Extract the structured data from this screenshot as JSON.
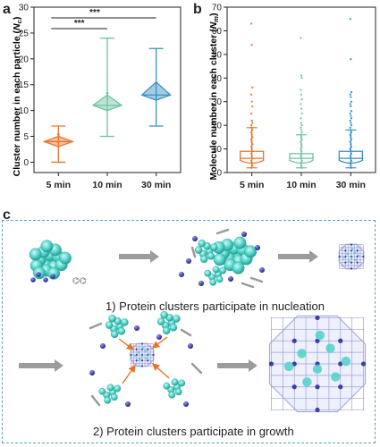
{
  "panels": {
    "a": "a",
    "b": "b",
    "c": "c"
  },
  "colors": {
    "orange": "#e8742c",
    "green": "#6cc3a0",
    "blue": "#3a8fc4",
    "cluster": "#4fd1c7",
    "atom": "#2b2fa0",
    "frame": "#9aa2d8"
  },
  "chart_data": [
    {
      "type": "violin",
      "ylabel": "Cluster number in each particle (N_c)",
      "ylabel_main": "Cluster number in each particle (",
      "ylabel_sym": "N",
      "ylabel_sub": "c",
      "ylabel_end": ")",
      "categories": [
        "5 min",
        "10 min",
        "30 min"
      ],
      "ylim": [
        -2,
        30
      ],
      "yticks": [
        0,
        5,
        10,
        15,
        20,
        25,
        30
      ],
      "series": [
        {
          "min": 0,
          "q1": 3,
          "median": 4,
          "q3": 5,
          "max": 7,
          "mean": 4,
          "color": "#e8742c"
        },
        {
          "min": 5,
          "q1": 10,
          "median": 11,
          "q3": 13,
          "max": 24,
          "mean": 12,
          "color": "#6cc3a0"
        },
        {
          "min": 7,
          "q1": 12,
          "median": 13,
          "q3": 15.5,
          "max": 22,
          "mean": 14,
          "color": "#3a8fc4"
        }
      ],
      "significance": [
        {
          "from": 0,
          "to": 1,
          "label": "***"
        },
        {
          "from": 0,
          "to": 2,
          "label": "***"
        }
      ]
    },
    {
      "type": "box-scatter",
      "ylabel": "Molecule number in each cluster (N_m)",
      "ylabel_main": "Molecule number in each cluster (",
      "ylabel_sym": "N",
      "ylabel_sub": "m",
      "ylabel_end": ")",
      "categories": [
        "5 min",
        "10 min",
        "30 min"
      ],
      "ylim": [
        0,
        70
      ],
      "yticks": [
        0,
        10,
        20,
        30,
        40,
        50,
        60,
        70
      ],
      "series": [
        {
          "min": 2,
          "q1": 4,
          "median": 6,
          "q3": 9,
          "max": 19,
          "mean": 8,
          "color": "#e8742c",
          "points": [
            63,
            54,
            36,
            33,
            30,
            28,
            25,
            22,
            21,
            20,
            19,
            18,
            17,
            16,
            15,
            14,
            13,
            12,
            11,
            10,
            9,
            8,
            7,
            6,
            5,
            4,
            3,
            2
          ]
        },
        {
          "min": 2,
          "q1": 4,
          "median": 6,
          "q3": 8,
          "max": 16,
          "mean": 7,
          "color": "#6cc3a0",
          "points": [
            57,
            41,
            40,
            35,
            33,
            31,
            29,
            27,
            25,
            23,
            21,
            20,
            19,
            18,
            17,
            16,
            15,
            14,
            13,
            12,
            11,
            10,
            9,
            8,
            7,
            6,
            5,
            4,
            3,
            2
          ]
        },
        {
          "min": 2,
          "q1": 4,
          "median": 6,
          "q3": 9,
          "max": 18,
          "mean": 7,
          "color": "#3a8fc4",
          "points": [
            65,
            48,
            34,
            33,
            32,
            30,
            29,
            28,
            26,
            25,
            24,
            23,
            22,
            21,
            20,
            19,
            18,
            17,
            16,
            15,
            14,
            13,
            12,
            11,
            10,
            9,
            8,
            7,
            6,
            5,
            4,
            3,
            2
          ]
        }
      ]
    }
  ],
  "schematic": {
    "caption1": "1) Protein clusters participate in nucleation",
    "caption2": "2) Protein clusters participate in growth"
  }
}
